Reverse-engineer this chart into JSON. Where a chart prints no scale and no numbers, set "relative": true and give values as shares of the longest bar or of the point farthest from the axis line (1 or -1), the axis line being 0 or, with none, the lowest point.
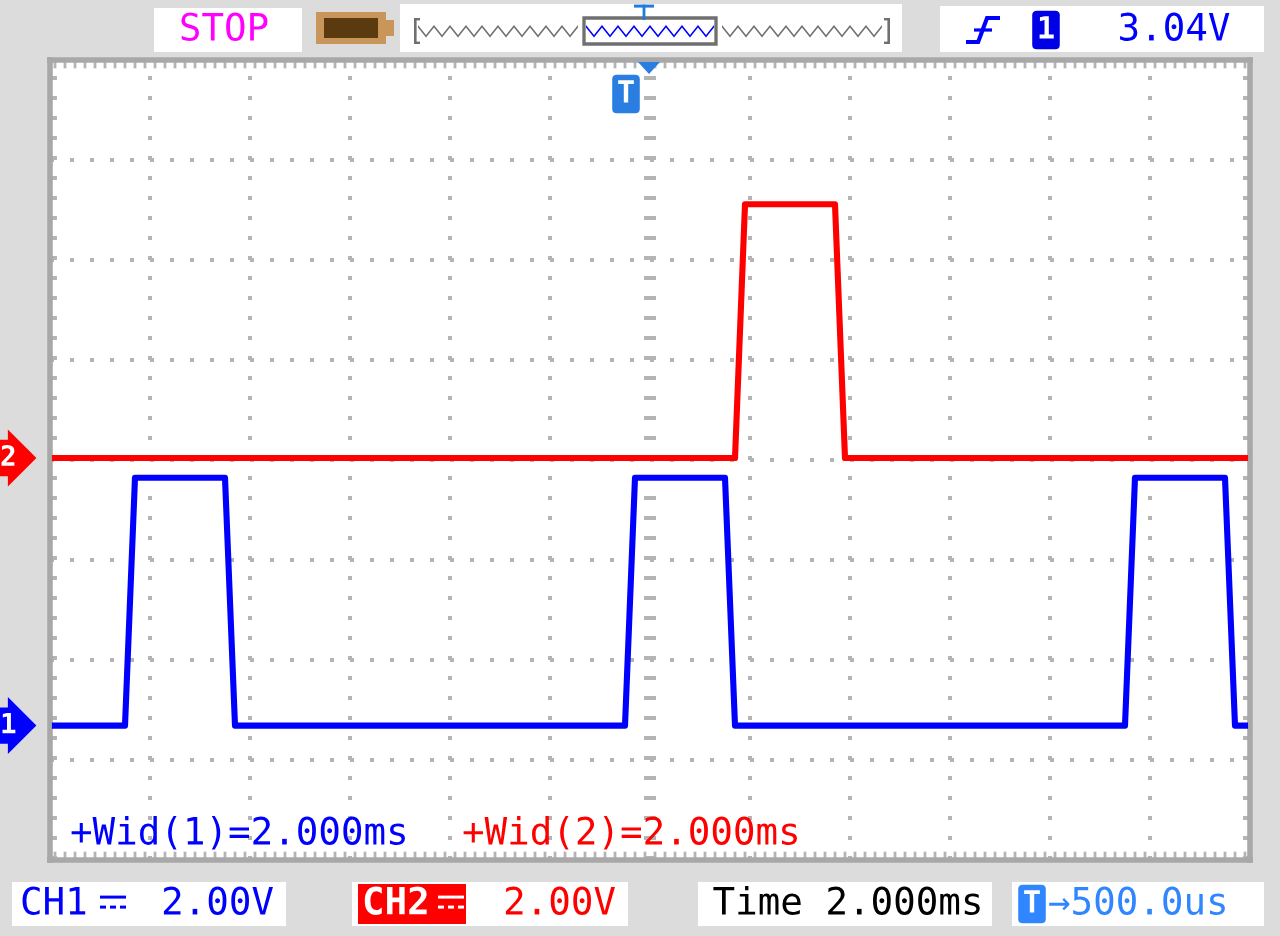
{
  "chart_data": {
    "type": "line",
    "relative": true,
    "grid": true,
    "categories": [
      null,
      null,
      null,
      null,
      null,
      null,
      null,
      null,
      null,
      null,
      null,
      null,
      null,
      null,
      null,
      null,
      null,
      null,
      null,
      null,
      null,
      null,
      null,
      null,
      null,
      null,
      null,
      null,
      null,
      null,
      null,
      null,
      null,
      null,
      null,
      null,
      null,
      null,
      null,
      null,
      null,
      null,
      null,
      null,
      null,
      null,
      null,
      null,
      null,
      null,
      null,
      null,
      null,
      null,
      null,
      null,
      null,
      null,
      null,
      null,
      null,
      null,
      null,
      null,
      null,
      null,
      null,
      null,
      null,
      null,
      null,
      null,
      null,
      null,
      null,
      null,
      null,
      null,
      null,
      null,
      null,
      null,
      null,
      null,
      null,
      null,
      null,
      null,
      null,
      null,
      null,
      null,
      null,
      null,
      null,
      null,
      null,
      null,
      null,
      null,
      null,
      null,
      null,
      null,
      null,
      null,
      null,
      null,
      null,
      null,
      null,
      null,
      null,
      null,
      null,
      null,
      null,
      null,
      null,
      null
    ],
    "series": [
      {
        "name": "1",
        "color": "#0000ff",
        "values": [
          0.205,
          0.205,
          0.205,
          0.205,
          0.205,
          0.205,
          0.205,
          0.205,
          0.583,
          0.583,
          0.583,
          0.583,
          0.583,
          0.583,
          0.583,
          0.583,
          0.583,
          0.583,
          0.205,
          0.205,
          0.205,
          0.205,
          0.205,
          0.205,
          0.205,
          0.205,
          0.205,
          0.205,
          0.205,
          0.205,
          0.205,
          0.205,
          0.205,
          0.205,
          0.205,
          0.205,
          0.205,
          0.205,
          0.205,
          0.205,
          0.205,
          0.205,
          0.205,
          0.205,
          0.205,
          0.205,
          0.205,
          0.205,
          0.205,
          0.205,
          0.205,
          0.205,
          0.205,
          0.205,
          0.205,
          0.205,
          0.205,
          0.205,
          0.583,
          0.583,
          0.583,
          0.583,
          0.583,
          0.583,
          0.583,
          0.583,
          0.583,
          0.583,
          0.205,
          0.205,
          0.205,
          0.205,
          0.205,
          0.205,
          0.205,
          0.205,
          0.205,
          0.205,
          0.205,
          0.205,
          0.205,
          0.205,
          0.205,
          0.205,
          0.205,
          0.205,
          0.205,
          0.205,
          0.205,
          0.205,
          0.205,
          0.205,
          0.205,
          0.205,
          0.205,
          0.205,
          0.205,
          0.205,
          0.205,
          0.205,
          0.205,
          0.205,
          0.205,
          0.205,
          0.205,
          0.205,
          0.205,
          0.205,
          0.583,
          0.583,
          0.583,
          0.583,
          0.583,
          0.583,
          0.583,
          0.583,
          0.583,
          0.583,
          0.205,
          0.205
        ]
      },
      {
        "name": "2",
        "color": "#ff0000",
        "values": [
          0.613,
          0.613,
          0.613,
          0.613,
          0.613,
          0.613,
          0.613,
          0.613,
          0.613,
          0.613,
          0.613,
          0.613,
          0.613,
          0.613,
          0.613,
          0.613,
          0.613,
          0.613,
          0.613,
          0.613,
          0.613,
          0.613,
          0.613,
          0.613,
          0.613,
          0.613,
          0.613,
          0.613,
          0.613,
          0.613,
          0.613,
          0.613,
          0.613,
          0.613,
          0.613,
          0.613,
          0.613,
          0.613,
          0.613,
          0.613,
          0.613,
          0.613,
          0.613,
          0.613,
          0.613,
          0.613,
          0.613,
          0.613,
          0.613,
          0.613,
          0.613,
          0.613,
          0.613,
          0.613,
          0.613,
          0.613,
          0.613,
          0.613,
          0.613,
          0.613,
          0.613,
          0.613,
          0.613,
          0.613,
          0.613,
          0.613,
          0.613,
          0.613,
          0.613,
          1,
          1,
          1,
          1,
          1,
          1,
          1,
          1,
          1,
          1,
          0.613,
          0.613,
          0.613,
          0.613,
          0.613,
          0.613,
          0.613,
          0.613,
          0.613,
          0.613,
          0.613,
          0.613,
          0.613,
          0.613,
          0.613,
          0.613,
          0.613,
          0.613,
          0.613,
          0.613,
          0.613,
          0.613,
          0.613,
          0.613,
          0.613,
          0.613,
          0.613,
          0.613,
          0.613,
          0.613,
          0.613,
          0.613,
          0.613,
          0.613,
          0.613,
          0.613,
          0.613,
          0.613,
          0.613,
          0.613,
          0.613
        ]
      }
    ],
    "annotations": [
      "STOP",
      "1",
      "3.04V",
      "T",
      "+Wid(1)=2.000ms",
      "+Wid(2)=2.000ms",
      "CH1",
      "2.00V",
      "CH2",
      "2.00V",
      "Time 2.000ms",
      "T",
      "→500.0us"
    ]
  }
}
